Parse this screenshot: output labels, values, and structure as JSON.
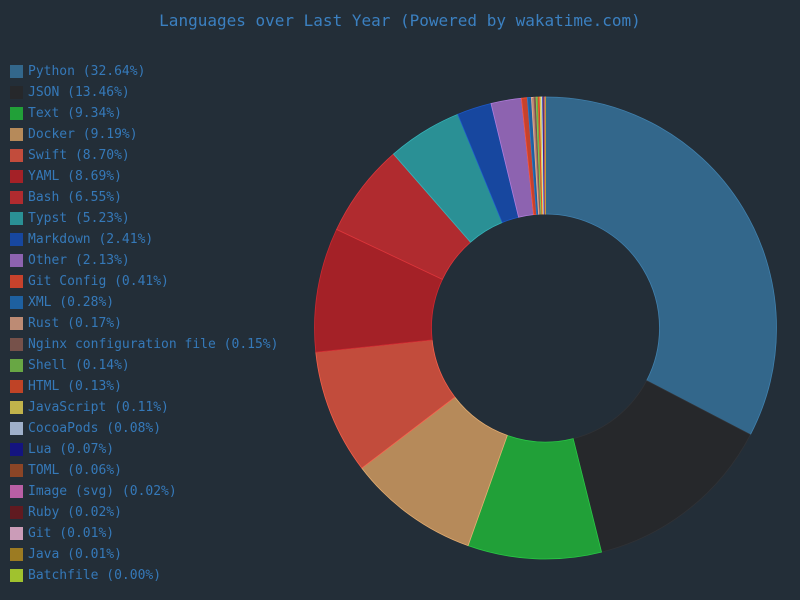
{
  "title": "Languages over Last Year (Powered by wakatime.com)",
  "theme": {
    "background": "#232e38",
    "title_color": "#3b80c1",
    "legend_text_color": "#3579b9"
  },
  "chart_data": {
    "type": "pie",
    "subtype": "donut",
    "title": "Languages over Last Year (Powered by wakatime.com)",
    "unit": "percent",
    "legend_position": "left",
    "start_angle_deg_from_top": 0,
    "direction": "clockwise",
    "donut_hole_ratio": 0.49,
    "label_format": "{label} ({percent}%)",
    "items": [
      {
        "label": "Python",
        "percent": 32.64,
        "color": "#33678b"
      },
      {
        "label": "JSON",
        "percent": 13.46,
        "color": "#26282b"
      },
      {
        "label": "Text",
        "percent": 9.34,
        "color": "#21a038"
      },
      {
        "label": "Docker",
        "percent": 9.19,
        "color": "#b68a5a"
      },
      {
        "label": "Swift",
        "percent": 8.7,
        "color": "#c24c3c"
      },
      {
        "label": "YAML",
        "percent": 8.69,
        "color": "#a42127"
      },
      {
        "label": "Bash",
        "percent": 6.55,
        "color": "#b02b2f"
      },
      {
        "label": "Typst",
        "percent": 5.23,
        "color": "#2a9095"
      },
      {
        "label": "Markdown",
        "percent": 2.41,
        "color": "#17479f"
      },
      {
        "label": "Other",
        "percent": 2.13,
        "color": "#8d63b0"
      },
      {
        "label": "Git Config",
        "percent": 0.41,
        "color": "#c7422c"
      },
      {
        "label": "XML",
        "percent": 0.28,
        "color": "#1e60a0"
      },
      {
        "label": "Rust",
        "percent": 0.17,
        "color": "#bd8b74"
      },
      {
        "label": "Nginx configuration file",
        "percent": 0.15,
        "color": "#76514a"
      },
      {
        "label": "Shell",
        "percent": 0.14,
        "color": "#68a744"
      },
      {
        "label": "HTML",
        "percent": 0.13,
        "color": "#bf4326"
      },
      {
        "label": "JavaScript",
        "percent": 0.11,
        "color": "#c1b34b"
      },
      {
        "label": "CocoaPods",
        "percent": 0.08,
        "color": "#9fb0ca"
      },
      {
        "label": "Lua",
        "percent": 0.07,
        "color": "#14147f"
      },
      {
        "label": "TOML",
        "percent": 0.06,
        "color": "#8b4526"
      },
      {
        "label": "Image (svg)",
        "percent": 0.02,
        "color": "#b95fa5"
      },
      {
        "label": "Ruby",
        "percent": 0.02,
        "color": "#601a20"
      },
      {
        "label": "Git",
        "percent": 0.01,
        "color": "#cb9cb8"
      },
      {
        "label": "Java",
        "percent": 0.01,
        "color": "#9c7b22"
      },
      {
        "label": "Batchfile",
        "percent": 0.0,
        "color": "#a0c22e"
      }
    ]
  }
}
